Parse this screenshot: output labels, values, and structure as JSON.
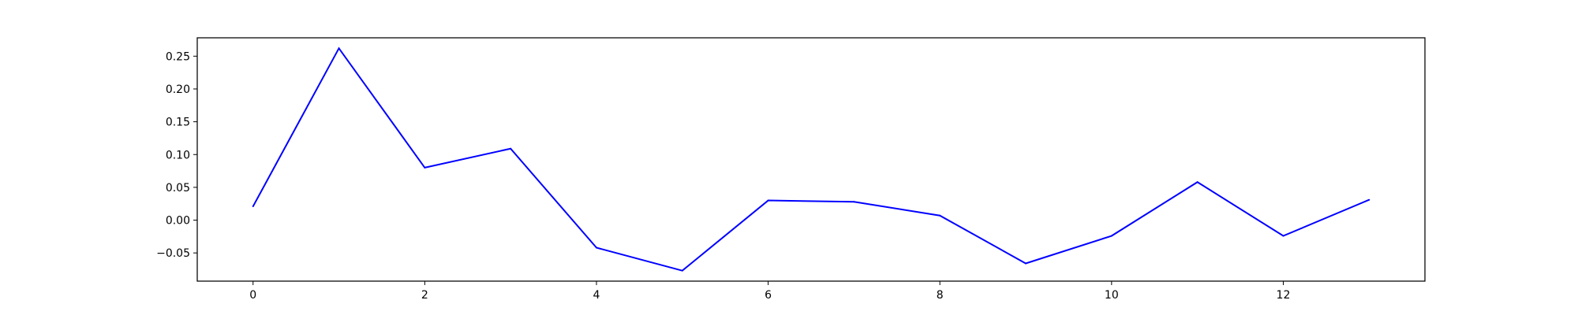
{
  "chart_data": {
    "type": "line",
    "title": "",
    "xlabel": "",
    "ylabel": "",
    "xlim": [
      -0.65,
      13.65
    ],
    "ylim": [
      -0.093,
      0.278
    ],
    "xticks": [
      0,
      2,
      4,
      6,
      8,
      10,
      12
    ],
    "xtick_labels": [
      "0",
      "2",
      "4",
      "6",
      "8",
      "10",
      "12"
    ],
    "yticks": [
      -0.05,
      0.0,
      0.05,
      0.1,
      0.15,
      0.2,
      0.25
    ],
    "ytick_labels": [
      "−0.05",
      "0.00",
      "0.05",
      "0.10",
      "0.15",
      "0.20",
      "0.25"
    ],
    "grid": false,
    "legend": "none",
    "series": [
      {
        "color": "#0000ff",
        "x": [
          0,
          1,
          2,
          3,
          4,
          5,
          6,
          7,
          8,
          9,
          10,
          11,
          12,
          13
        ],
        "values": [
          0.021,
          0.262,
          0.08,
          0.109,
          -0.042,
          -0.077,
          0.03,
          0.028,
          0.007,
          -0.066,
          -0.024,
          0.058,
          -0.024,
          0.031
        ]
      }
    ]
  }
}
